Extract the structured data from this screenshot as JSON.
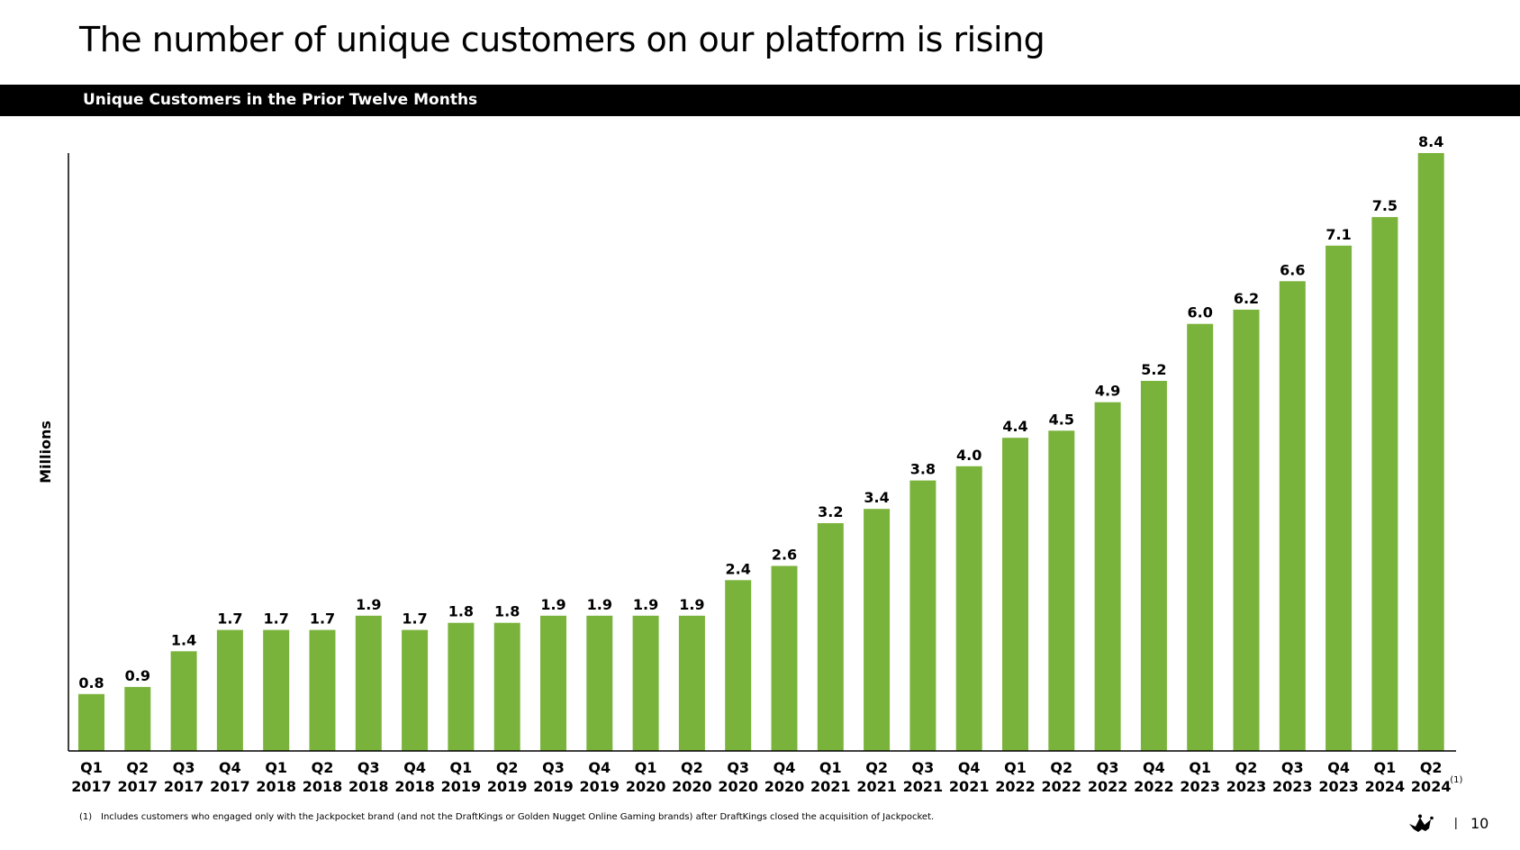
{
  "slide": {
    "title": "The number of unique customers on our platform is rising",
    "footnote_marker": "(1)",
    "footnote_text": "Includes customers who engaged only with the Jackpocket brand (and not the DraftKings or Golden Nugget Online Gaming brands) after DraftKings closed the acquisition of Jackpocket.",
    "page_separator": "|",
    "page_number": "10"
  },
  "colors": {
    "bar": "#7ab33b",
    "banner": "#000000",
    "text": "#000000"
  },
  "chart_data": {
    "type": "bar",
    "title": "Unique Customers in the Prior Twelve Months",
    "xlabel": "",
    "ylabel": "Millions",
    "ylim": [
      0,
      8.4
    ],
    "grid": false,
    "categories": [
      [
        "Q1",
        "2017"
      ],
      [
        "Q2",
        "2017"
      ],
      [
        "Q3",
        "2017"
      ],
      [
        "Q4",
        "2017"
      ],
      [
        "Q1",
        "2018"
      ],
      [
        "Q2",
        "2018"
      ],
      [
        "Q3",
        "2018"
      ],
      [
        "Q4",
        "2018"
      ],
      [
        "Q1",
        "2019"
      ],
      [
        "Q2",
        "2019"
      ],
      [
        "Q3",
        "2019"
      ],
      [
        "Q4",
        "2019"
      ],
      [
        "Q1",
        "2020"
      ],
      [
        "Q2",
        "2020"
      ],
      [
        "Q3",
        "2020"
      ],
      [
        "Q4",
        "2020"
      ],
      [
        "Q1",
        "2021"
      ],
      [
        "Q2",
        "2021"
      ],
      [
        "Q3",
        "2021"
      ],
      [
        "Q4",
        "2021"
      ],
      [
        "Q1",
        "2022"
      ],
      [
        "Q2",
        "2022"
      ],
      [
        "Q3",
        "2022"
      ],
      [
        "Q4",
        "2022"
      ],
      [
        "Q1",
        "2023"
      ],
      [
        "Q2",
        "2023"
      ],
      [
        "Q3",
        "2023"
      ],
      [
        "Q4",
        "2023"
      ],
      [
        "Q1",
        "2024"
      ],
      [
        "Q2",
        "2024"
      ]
    ],
    "values": [
      0.8,
      0.9,
      1.4,
      1.7,
      1.7,
      1.7,
      1.9,
      1.7,
      1.8,
      1.8,
      1.9,
      1.9,
      1.9,
      1.9,
      2.4,
      2.6,
      3.2,
      3.4,
      3.8,
      4.0,
      4.4,
      4.5,
      4.9,
      5.2,
      6.0,
      6.2,
      6.6,
      7.1,
      7.5,
      8.4
    ],
    "labels": [
      "0.8",
      "0.9",
      "1.4",
      "1.7",
      "1.7",
      "1.7",
      "1.9",
      "1.7",
      "1.8",
      "1.8",
      "1.9",
      "1.9",
      "1.9",
      "1.9",
      "2.4",
      "2.6",
      "3.2",
      "3.4",
      "3.8",
      "4.0",
      "4.4",
      "4.5",
      "4.9",
      "5.2",
      "6.0",
      "6.2",
      "6.6",
      "7.1",
      "7.5",
      "8.4"
    ],
    "last_category_note": "(1)"
  }
}
